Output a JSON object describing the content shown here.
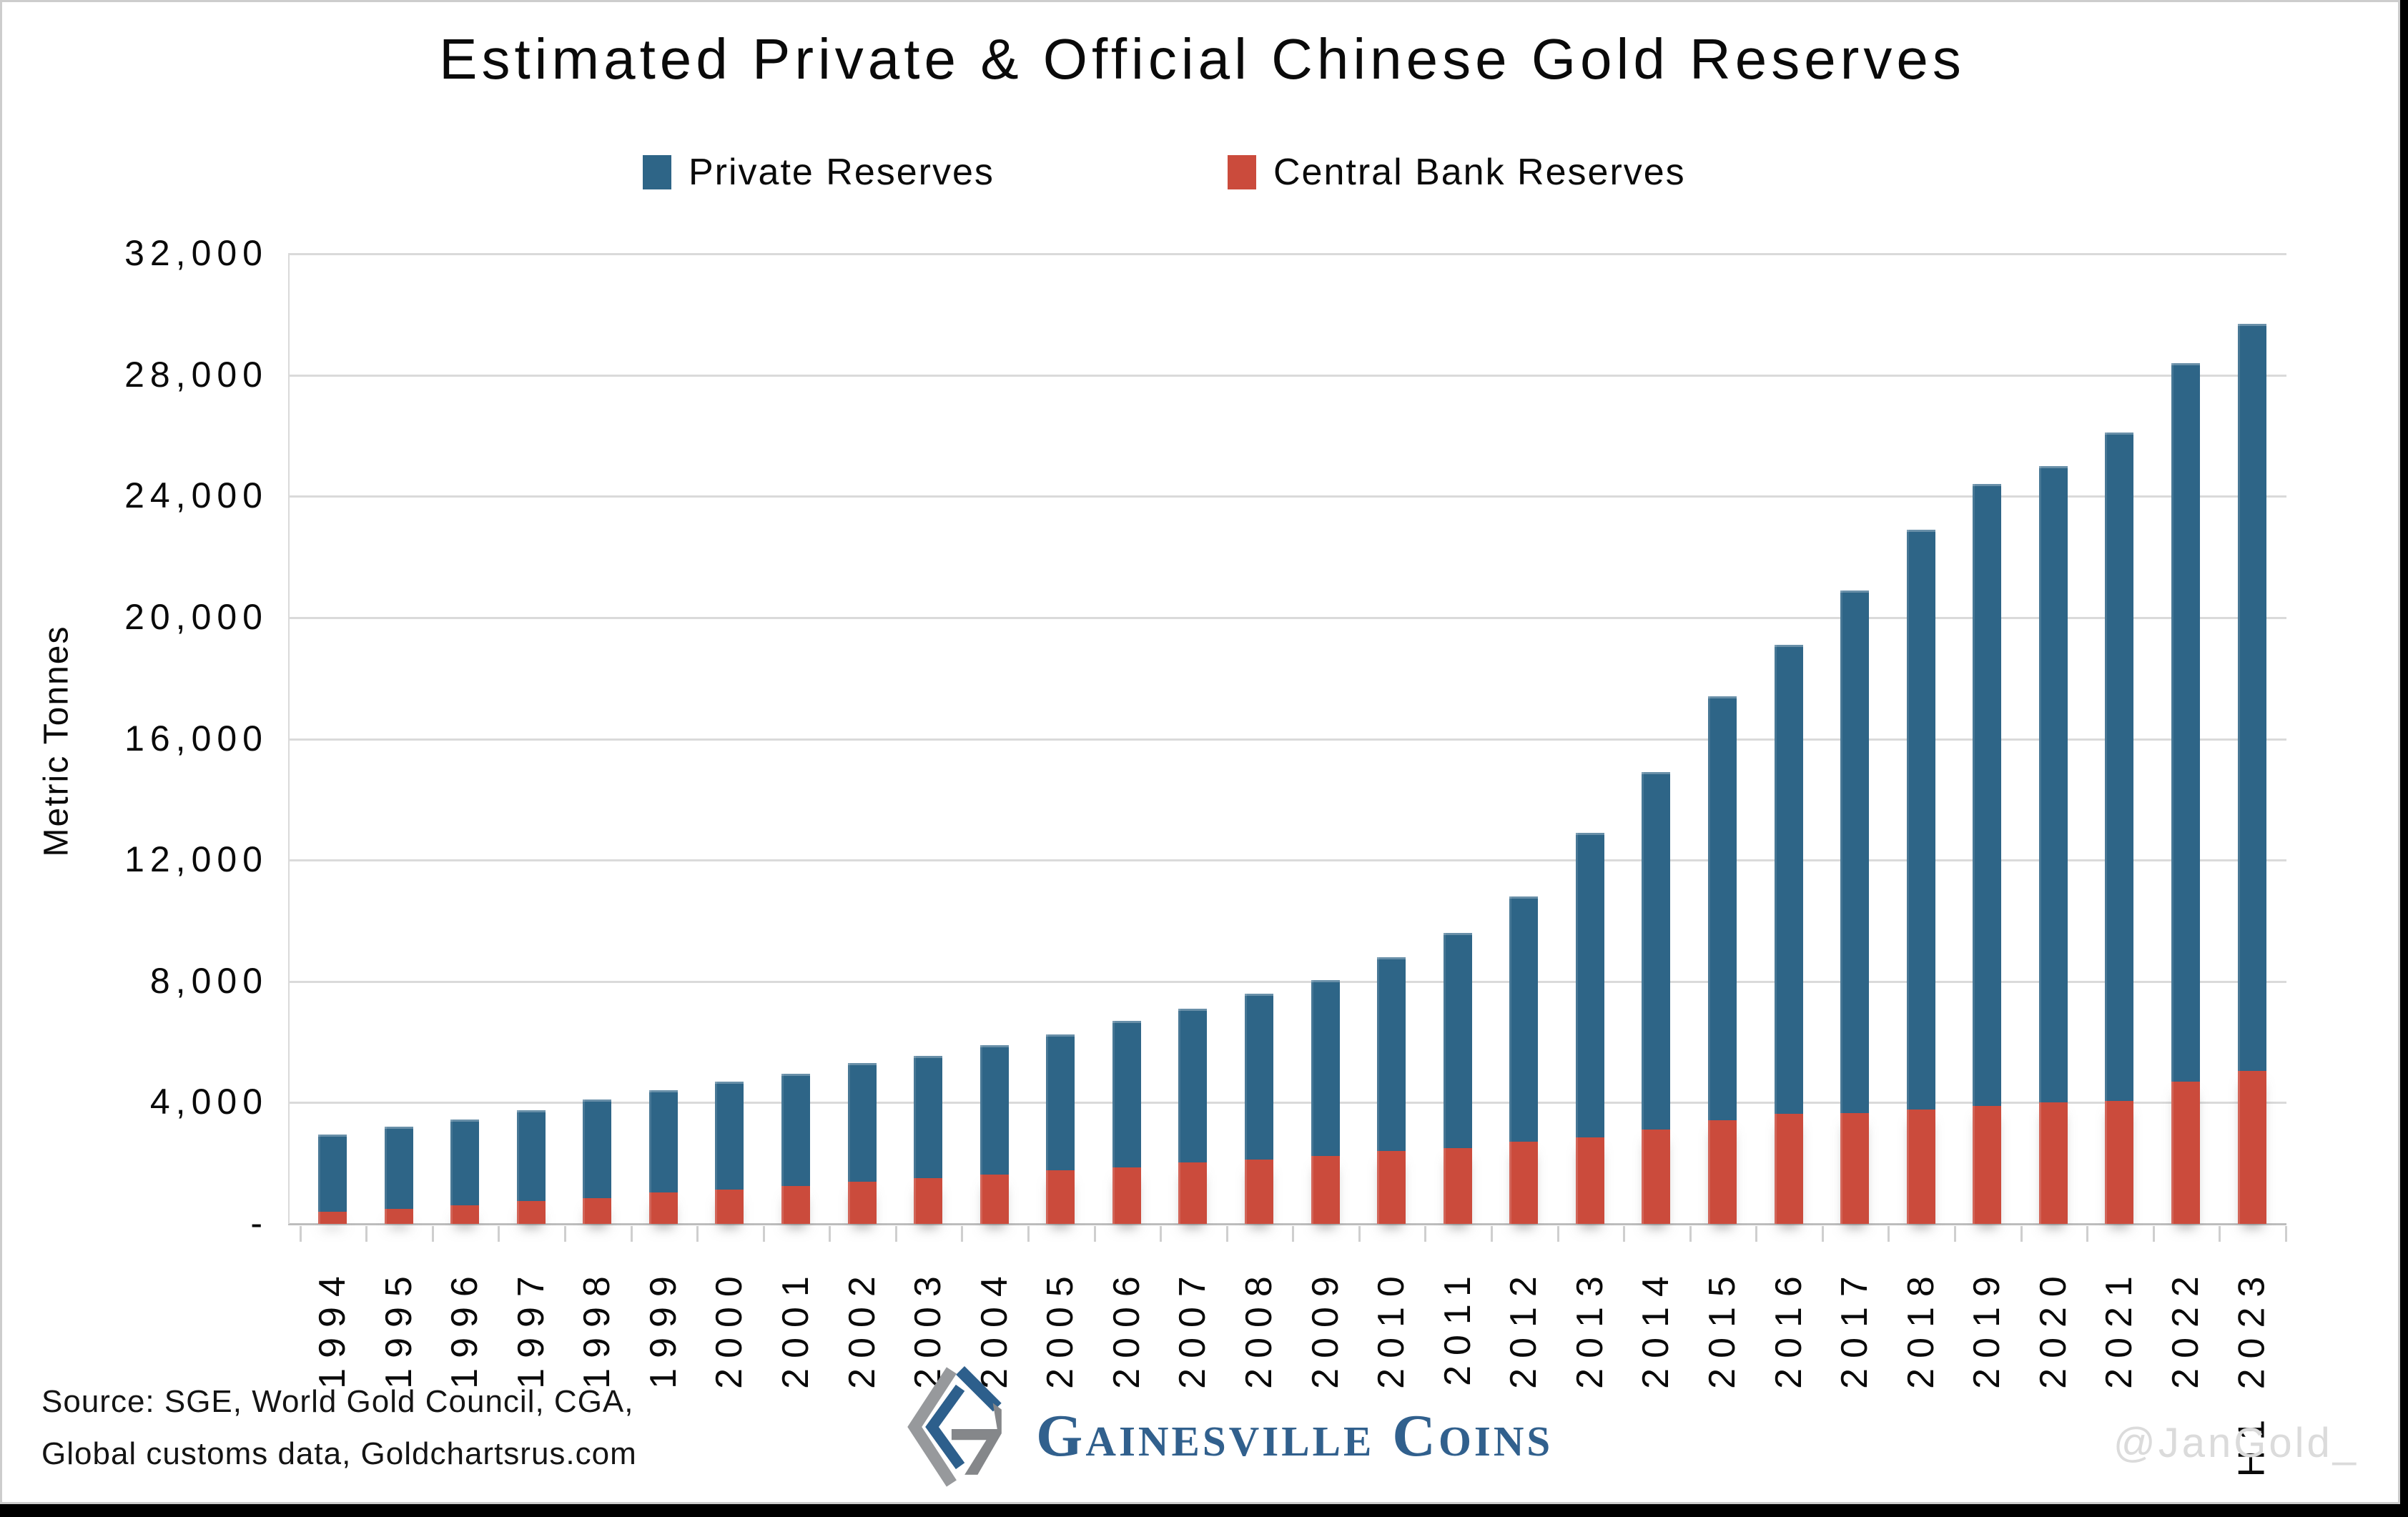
{
  "title": "Estimated Private & Official Chinese Gold Reserves",
  "legend": [
    {
      "label": "Private Reserves",
      "color": "#2e6587"
    },
    {
      "label": "Central Bank Reserves",
      "color": "#cb4b3c"
    }
  ],
  "y_axis": {
    "label": "Metric Tonnes",
    "zero_label": "-"
  },
  "footer": {
    "source_line1": "Source: SGE, World Gold Council, CGA,",
    "source_line2": "Global customs data, Goldchartsrus.com",
    "logo_text": "Gainesville Coins",
    "watermark": "@JanGold_"
  },
  "colors": {
    "private_blue": "#2e6587",
    "central_bank_red": "#cb4b3c",
    "gridline": "#dadada",
    "axis": "#bdbdbd",
    "logo_blue": "#2d5f8c",
    "logo_gray": "#97999c",
    "watermark_gray": "#dbdbdb"
  },
  "chart_data": {
    "type": "bar",
    "stacked": true,
    "title": "Estimated Private & Official Chinese Gold Reserves",
    "xlabel": "",
    "ylabel": "Metric Tonnes",
    "ylim": [
      0,
      32000
    ],
    "ytick_step": 4000,
    "grid": true,
    "legend_position": "top",
    "categories": [
      "1994",
      "1995",
      "1996",
      "1997",
      "1998",
      "1999",
      "2000",
      "2001",
      "2002",
      "2003",
      "2004",
      "2005",
      "2006",
      "2007",
      "2008",
      "2009",
      "2010",
      "2011",
      "2012",
      "2013",
      "2014",
      "2015",
      "2016",
      "2017",
      "2018",
      "2019",
      "2020",
      "2021",
      "2022",
      "H1 2023"
    ],
    "series": [
      {
        "name": "Central Bank Reserves",
        "color": "#cb4b3c",
        "values": [
          400,
          500,
          620,
          760,
          860,
          1030,
          1140,
          1250,
          1400,
          1500,
          1620,
          1770,
          1870,
          2020,
          2130,
          2250,
          2400,
          2500,
          2710,
          2850,
          3110,
          3410,
          3640,
          3660,
          3770,
          3900,
          4000,
          4050,
          4700,
          5050
        ]
      },
      {
        "name": "Private Reserves",
        "color": "#2e6587",
        "values": [
          2550,
          2700,
          2830,
          2990,
          3240,
          3370,
          3560,
          3700,
          3900,
          4050,
          4280,
          4480,
          4830,
          5080,
          5470,
          5800,
          6400,
          7100,
          8090,
          10050,
          11790,
          13990,
          15460,
          17240,
          19130,
          20500,
          21000,
          22050,
          23700,
          24650
        ]
      }
    ]
  }
}
